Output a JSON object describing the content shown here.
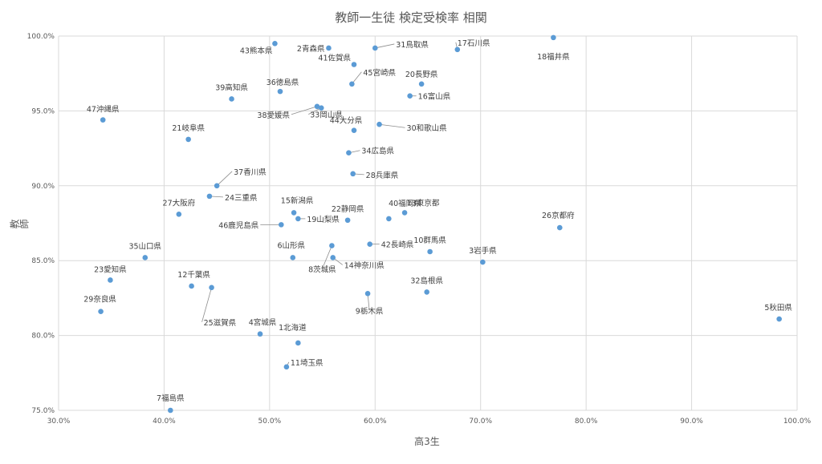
{
  "chart_data": {
    "type": "scatter",
    "title": "教師一生徒 検定受検率 相関",
    "xlabel": "高3生",
    "ylabel": "教師",
    "xlim": [
      0.3,
      1.0
    ],
    "ylim": [
      0.75,
      1.0
    ],
    "grid": true,
    "x_ticks": [
      "30.0%",
      "40.0%",
      "50.0%",
      "60.0%",
      "70.0%",
      "80.0%",
      "90.0%",
      "100.0%"
    ],
    "y_ticks": [
      "75.0%",
      "80.0%",
      "85.0%",
      "90.0%",
      "95.0%",
      "100.0%"
    ],
    "points": [
      {
        "label": "43熊本県",
        "x": 0.505,
        "y": 0.995
      },
      {
        "label": "2青森県",
        "x": 0.556,
        "y": 0.992
      },
      {
        "label": "31鳥取県",
        "x": 0.6,
        "y": 0.992
      },
      {
        "label": "17石川県",
        "x": 0.678,
        "y": 0.991
      },
      {
        "label": "18福井県",
        "x": 0.769,
        "y": 0.999
      },
      {
        "label": "41佐賀県",
        "x": 0.58,
        "y": 0.981
      },
      {
        "label": "20長野県",
        "x": 0.644,
        "y": 0.968
      },
      {
        "label": "36徳島県",
        "x": 0.51,
        "y": 0.963
      },
      {
        "label": "45宮崎県",
        "x": 0.578,
        "y": 0.968
      },
      {
        "label": "16富山県",
        "x": 0.633,
        "y": 0.96
      },
      {
        "label": "39高知県",
        "x": 0.464,
        "y": 0.958
      },
      {
        "label": "47沖縄県",
        "x": 0.342,
        "y": 0.944
      },
      {
        "label": "38愛媛県",
        "x": 0.545,
        "y": 0.953
      },
      {
        "label": "33岡山県",
        "x": 0.549,
        "y": 0.952
      },
      {
        "label": "44大分県",
        "x": 0.58,
        "y": 0.937
      },
      {
        "label": "30和歌山県",
        "x": 0.604,
        "y": 0.941
      },
      {
        "label": "21岐阜県",
        "x": 0.423,
        "y": 0.931
      },
      {
        "label": "34広島県",
        "x": 0.575,
        "y": 0.922
      },
      {
        "label": "28兵庫県",
        "x": 0.579,
        "y": 0.908
      },
      {
        "label": "37香川県",
        "x": 0.45,
        "y": 0.9
      },
      {
        "label": "24三重県",
        "x": 0.443,
        "y": 0.893
      },
      {
        "label": "27大阪府",
        "x": 0.414,
        "y": 0.881
      },
      {
        "label": "15新潟県",
        "x": 0.523,
        "y": 0.882
      },
      {
        "label": "19山梨県",
        "x": 0.527,
        "y": 0.878
      },
      {
        "label": "22静岡県",
        "x": 0.574,
        "y": 0.877
      },
      {
        "label": "40福岡県",
        "x": 0.613,
        "y": 0.878
      },
      {
        "label": "13東京都",
        "x": 0.628,
        "y": 0.882
      },
      {
        "label": "46鹿児島県",
        "x": 0.511,
        "y": 0.874
      },
      {
        "label": "26京都府",
        "x": 0.775,
        "y": 0.872
      },
      {
        "label": "35山口県",
        "x": 0.382,
        "y": 0.852
      },
      {
        "label": "6山形県",
        "x": 0.522,
        "y": 0.852
      },
      {
        "label": "14神奈川県",
        "x": 0.56,
        "y": 0.852
      },
      {
        "label": "8茨城県",
        "x": 0.559,
        "y": 0.86
      },
      {
        "label": "42長崎県",
        "x": 0.595,
        "y": 0.861
      },
      {
        "label": "10群馬県",
        "x": 0.652,
        "y": 0.856
      },
      {
        "label": "3岩手県",
        "x": 0.702,
        "y": 0.849
      },
      {
        "label": "23愛知県",
        "x": 0.349,
        "y": 0.837
      },
      {
        "label": "12千葉県",
        "x": 0.426,
        "y": 0.833
      },
      {
        "label": "25滋賀県",
        "x": 0.445,
        "y": 0.832
      },
      {
        "label": "32島根県",
        "x": 0.649,
        "y": 0.829
      },
      {
        "label": "9栃木県",
        "x": 0.593,
        "y": 0.828
      },
      {
        "label": "29奈良県",
        "x": 0.34,
        "y": 0.816
      },
      {
        "label": "5秋田県",
        "x": 0.983,
        "y": 0.811
      },
      {
        "label": "4宮城県",
        "x": 0.491,
        "y": 0.801
      },
      {
        "label": "1北海道",
        "x": 0.527,
        "y": 0.795
      },
      {
        "label": "11埼玉県",
        "x": 0.516,
        "y": 0.779
      },
      {
        "label": "7福島県",
        "x": 0.406,
        "y": 0.75
      }
    ]
  },
  "colors": {
    "point": "#5b9bd5",
    "grid": "#d9d9d9",
    "text": "#595959"
  }
}
